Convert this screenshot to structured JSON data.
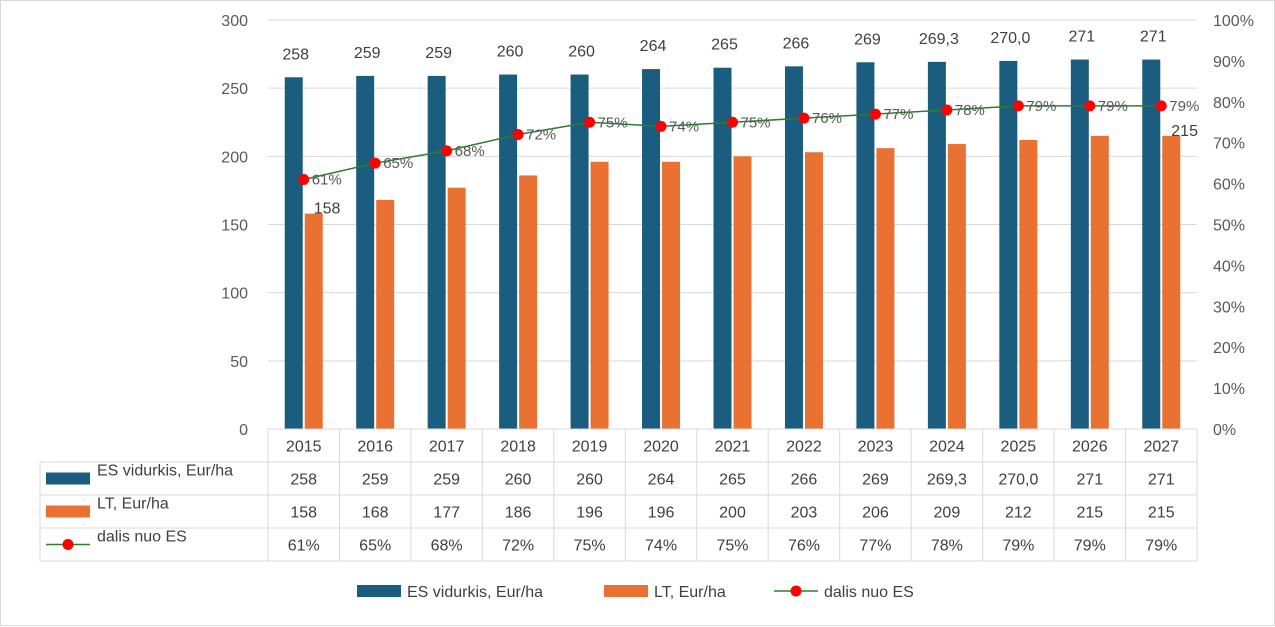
{
  "chart_data": {
    "type": "bar",
    "categories": [
      "2015",
      "2016",
      "2017",
      "2018",
      "2019",
      "2020",
      "2021",
      "2022",
      "2023",
      "2024",
      "2025",
      "2026",
      "2027"
    ],
    "series": [
      {
        "name": "ES vidurkis, Eur/ha",
        "kind": "bar",
        "axis": "left",
        "color": "#1a5d7e",
        "values": [
          258,
          259,
          259,
          260,
          260,
          264,
          265,
          266,
          269,
          269.3,
          270.0,
          271,
          271
        ],
        "labels": [
          "258",
          "259",
          "259",
          "260",
          "260",
          "264",
          "265",
          "266",
          "269",
          "269,3",
          "270,0",
          "271",
          "271"
        ]
      },
      {
        "name": "LT, Eur/ha",
        "kind": "bar",
        "axis": "left",
        "color": "#e97132",
        "values": [
          158,
          168,
          177,
          186,
          196,
          196,
          200,
          203,
          206,
          209,
          212,
          215,
          215
        ],
        "labels": [
          "158",
          "168",
          "177",
          "186",
          "196",
          "196",
          "200",
          "203",
          "206",
          "209",
          "212",
          "215",
          "215"
        ]
      },
      {
        "name": "dalis nuo ES",
        "kind": "line",
        "axis": "right",
        "color": "#2e7d32",
        "marker_color": "#ff0000",
        "values": [
          61,
          65,
          68,
          72,
          75,
          74,
          75,
          76,
          77,
          78,
          79,
          79,
          79
        ],
        "labels": [
          "61%",
          "65%",
          "68%",
          "72%",
          "75%",
          "74%",
          "75%",
          "76%",
          "77%",
          "78%",
          "79%",
          "79%",
          "79%"
        ]
      }
    ],
    "y_left": {
      "min": 0,
      "max": 300,
      "step": 50,
      "ticks": [
        "0",
        "50",
        "100",
        "150",
        "200",
        "250",
        "300"
      ]
    },
    "y_right": {
      "min": 0,
      "max": 100,
      "step": 10,
      "ticks": [
        "0%",
        "10%",
        "20%",
        "30%",
        "40%",
        "50%",
        "60%",
        "70%",
        "80%",
        "90%",
        "100%"
      ]
    },
    "data_labels_shown": {
      "ES vidurkis, Eur/ha": "all",
      "LT, Eur/ha": [
        "158",
        "215"
      ],
      "dalis nuo ES": "all"
    },
    "data_table": true,
    "legend": "bottom"
  }
}
